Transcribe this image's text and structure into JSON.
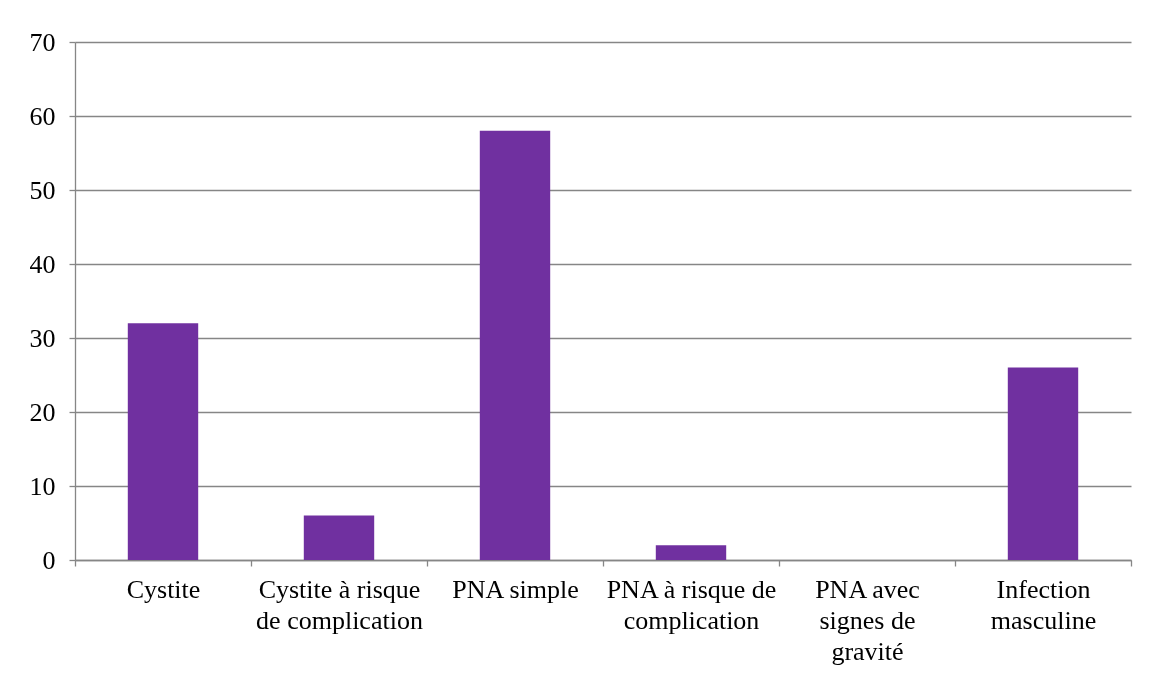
{
  "chart_data": {
    "type": "bar",
    "categories": [
      "Cystite",
      "Cystite à risque de complication",
      "PNA simple",
      "PNA à risque de complication",
      "PNA avec signes de gravité",
      "Infection masculine"
    ],
    "values": [
      32,
      6,
      58,
      2,
      0,
      26
    ],
    "color": "#7030a0",
    "ylim": [
      0,
      70
    ],
    "yticks": [
      0,
      10,
      20,
      30,
      40,
      50,
      60,
      70
    ],
    "grid": "y"
  }
}
